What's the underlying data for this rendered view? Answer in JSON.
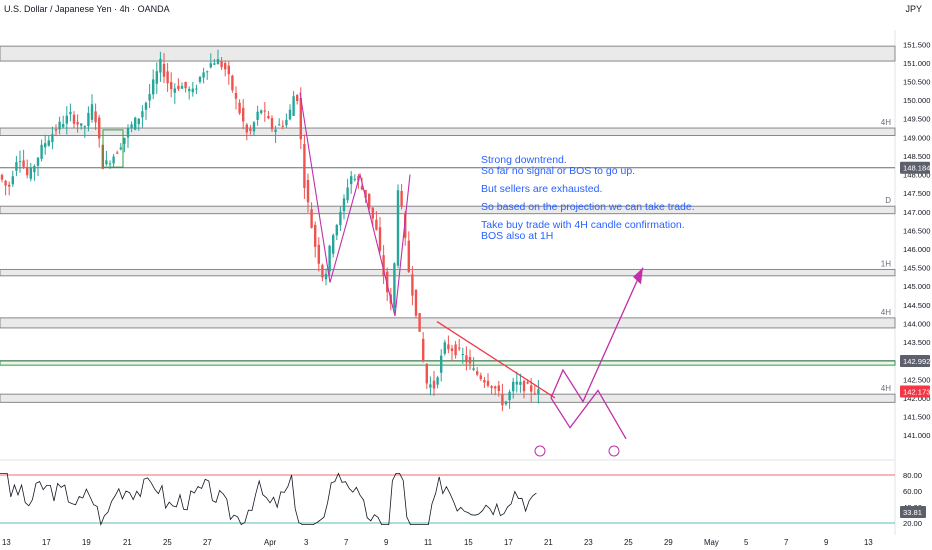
{
  "header": {
    "title": "U.S. Dollar / Japanese Yen · 4h · OANDA",
    "currency": "JPY"
  },
  "chart_data": {
    "type": "candlestick",
    "y_axis": {
      "range": [
        140.6,
        151.75
      ],
      "ticks": [
        "151.500",
        "151.000",
        "150.500",
        "150.000",
        "149.500",
        "149.000",
        "148.500",
        "148.000",
        "147.500",
        "147.000",
        "146.500",
        "146.000",
        "145.500",
        "145.000",
        "144.500",
        "144.000",
        "143.500",
        "143.000",
        "142.500",
        "142.000",
        "141.500",
        "141.000"
      ]
    },
    "x_axis": {
      "labels": [
        "13",
        "17",
        "19",
        "21",
        "25",
        "27",
        "Apr",
        "3",
        "7",
        "9",
        "11",
        "15",
        "17",
        "21",
        "23",
        "25",
        "29",
        "May",
        "5",
        "7",
        "9",
        "13"
      ]
    },
    "price_badges": [
      {
        "value": "148.184",
        "price": 148.184,
        "style": "grey"
      },
      {
        "value": "142.992",
        "price": 142.992,
        "style": "grey"
      },
      {
        "value": "142.173",
        "price": 142.173,
        "style": "red"
      }
    ],
    "zones": [
      {
        "top": 151.45,
        "bottom": 151.05,
        "color": "#888888"
      },
      {
        "top": 149.25,
        "bottom": 149.05,
        "color": "#888888",
        "label": "4H"
      },
      {
        "top": 147.15,
        "bottom": 146.95,
        "color": "#888888",
        "label": "D"
      },
      {
        "top": 145.45,
        "bottom": 145.28,
        "color": "#888888",
        "label": "1H"
      },
      {
        "top": 144.15,
        "bottom": 143.88,
        "color": "#888888",
        "label": "4H"
      },
      {
        "top": 143.0,
        "bottom": 142.88,
        "color": "#2e9e3e"
      },
      {
        "top": 142.1,
        "bottom": 141.88,
        "color": "#888888",
        "label": "4H"
      }
    ],
    "zone_lines": [
      148.184,
      142.992
    ],
    "annotation": [
      "Strong downtrend.",
      "So far no signal or BOS to go up.",
      "",
      "But sellers are exhausted.",
      "",
      "So based on the projection we can take trade.",
      "",
      "Take buy trade with 4H candle confirmation.",
      "BOS also at 1H"
    ],
    "oscillator": {
      "ticks": [
        "80.00",
        "60.00",
        "40.00",
        "20.00"
      ],
      "range": [
        15,
        90
      ],
      "levels": [
        80,
        20
      ],
      "current": "33.81"
    },
    "colors": {
      "up": "#26a69a",
      "down": "#ef5350",
      "projection": "#c22fa8",
      "trendline": "#f23645",
      "annotation": "#2962ff",
      "badge_grey": "#5d606b",
      "badge_red": "#f23645"
    }
  }
}
